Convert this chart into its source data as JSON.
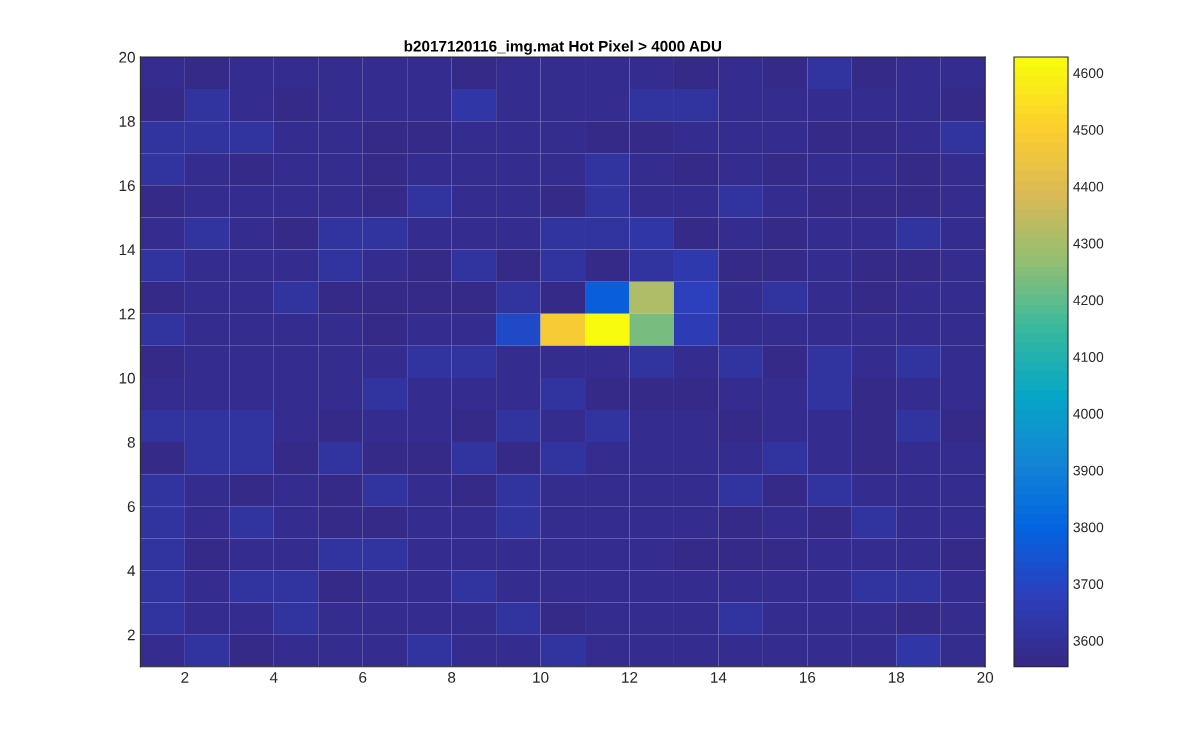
{
  "chart_data": {
    "type": "heatmap",
    "title": "b2017120116_img.mat Hot Pixel > 4000 ADU",
    "x": [
      1.5,
      2.5,
      3.5,
      4.5,
      5.5,
      6.5,
      7.5,
      8.5,
      9.5,
      10.5,
      11.5,
      12.5,
      13.5,
      14.5,
      15.5,
      16.5,
      17.5,
      18.5,
      19.5
    ],
    "y": [
      19.5,
      18.5,
      17.5,
      16.5,
      15.5,
      14.5,
      13.5,
      12.5,
      11.5,
      10.5,
      9.5,
      8.5,
      7.5,
      6.5,
      5.5,
      4.5,
      3.5,
      2.5,
      1.5
    ],
    "cells": [
      [
        3585,
        3560,
        3585,
        3585,
        3585,
        3585,
        3585,
        3560,
        3585,
        3585,
        3585,
        3585,
        3560,
        3585,
        3560,
        3605,
        3560,
        3585,
        3585
      ],
      [
        3560,
        3605,
        3585,
        3560,
        3585,
        3585,
        3585,
        3630,
        3585,
        3585,
        3585,
        3605,
        3605,
        3585,
        3585,
        3585,
        3585,
        3585,
        3560
      ],
      [
        3605,
        3605,
        3605,
        3585,
        3585,
        3560,
        3560,
        3585,
        3585,
        3585,
        3560,
        3560,
        3585,
        3585,
        3585,
        3560,
        3560,
        3585,
        3605
      ],
      [
        3605,
        3585,
        3560,
        3585,
        3585,
        3560,
        3585,
        3585,
        3585,
        3585,
        3605,
        3585,
        3560,
        3585,
        3560,
        3585,
        3585,
        3560,
        3585
      ],
      [
        3560,
        3585,
        3585,
        3585,
        3585,
        3560,
        3605,
        3585,
        3585,
        3560,
        3605,
        3585,
        3585,
        3605,
        3585,
        3560,
        3560,
        3560,
        3585
      ],
      [
        3585,
        3605,
        3585,
        3560,
        3605,
        3605,
        3585,
        3585,
        3585,
        3605,
        3605,
        3630,
        3560,
        3585,
        3560,
        3585,
        3585,
        3605,
        3585
      ],
      [
        3605,
        3585,
        3585,
        3585,
        3605,
        3585,
        3560,
        3605,
        3560,
        3605,
        3560,
        3605,
        3640,
        3560,
        3560,
        3585,
        3560,
        3560,
        3585
      ],
      [
        3560,
        3585,
        3585,
        3605,
        3560,
        3560,
        3560,
        3560,
        3605,
        3560,
        3775,
        4310,
        3680,
        3585,
        3605,
        3585,
        3560,
        3585,
        3585
      ],
      [
        3605,
        3585,
        3585,
        3585,
        3585,
        3560,
        3585,
        3585,
        3720,
        4480,
        4628,
        4240,
        3660,
        3585,
        3585,
        3585,
        3585,
        3585,
        3585
      ],
      [
        3560,
        3585,
        3585,
        3585,
        3585,
        3585,
        3605,
        3605,
        3585,
        3585,
        3585,
        3605,
        3585,
        3605,
        3560,
        3605,
        3585,
        3605,
        3585
      ],
      [
        3585,
        3585,
        3585,
        3585,
        3585,
        3605,
        3585,
        3585,
        3585,
        3605,
        3560,
        3560,
        3560,
        3585,
        3585,
        3605,
        3560,
        3585,
        3585
      ],
      [
        3605,
        3605,
        3605,
        3585,
        3560,
        3585,
        3585,
        3560,
        3605,
        3585,
        3605,
        3585,
        3585,
        3560,
        3585,
        3585,
        3560,
        3605,
        3560
      ],
      [
        3560,
        3605,
        3605,
        3560,
        3605,
        3560,
        3560,
        3605,
        3560,
        3605,
        3585,
        3585,
        3585,
        3585,
        3605,
        3585,
        3560,
        3585,
        3585
      ],
      [
        3605,
        3585,
        3560,
        3585,
        3560,
        3605,
        3585,
        3560,
        3605,
        3585,
        3585,
        3585,
        3585,
        3605,
        3560,
        3605,
        3585,
        3585,
        3585
      ],
      [
        3605,
        3585,
        3605,
        3585,
        3560,
        3560,
        3585,
        3585,
        3605,
        3585,
        3585,
        3585,
        3585,
        3560,
        3585,
        3560,
        3605,
        3585,
        3585
      ],
      [
        3605,
        3560,
        3585,
        3585,
        3605,
        3605,
        3585,
        3585,
        3585,
        3585,
        3585,
        3585,
        3560,
        3560,
        3560,
        3585,
        3585,
        3585,
        3560
      ],
      [
        3605,
        3585,
        3605,
        3605,
        3560,
        3585,
        3585,
        3605,
        3585,
        3585,
        3585,
        3585,
        3585,
        3585,
        3585,
        3585,
        3605,
        3605,
        3585
      ],
      [
        3605,
        3585,
        3585,
        3605,
        3585,
        3585,
        3585,
        3585,
        3605,
        3560,
        3585,
        3585,
        3585,
        3605,
        3585,
        3585,
        3585,
        3560,
        3585
      ],
      [
        3585,
        3605,
        3560,
        3585,
        3585,
        3585,
        3605,
        3585,
        3585,
        3605,
        3585,
        3585,
        3585,
        3585,
        3585,
        3585,
        3585,
        3630,
        3585
      ]
    ],
    "xlim": [
      1,
      20
    ],
    "xticks": [
      2,
      4,
      6,
      8,
      10,
      12,
      14,
      16,
      18,
      20
    ],
    "ylim": [
      1,
      20
    ],
    "yticks": [
      2,
      4,
      6,
      8,
      10,
      12,
      14,
      16,
      18,
      20
    ],
    "clim": [
      3554,
      4628
    ],
    "cticks": [
      3600,
      3700,
      3800,
      3900,
      4000,
      4100,
      4200,
      4300,
      4400,
      4500,
      4600
    ],
    "grid": false
  }
}
